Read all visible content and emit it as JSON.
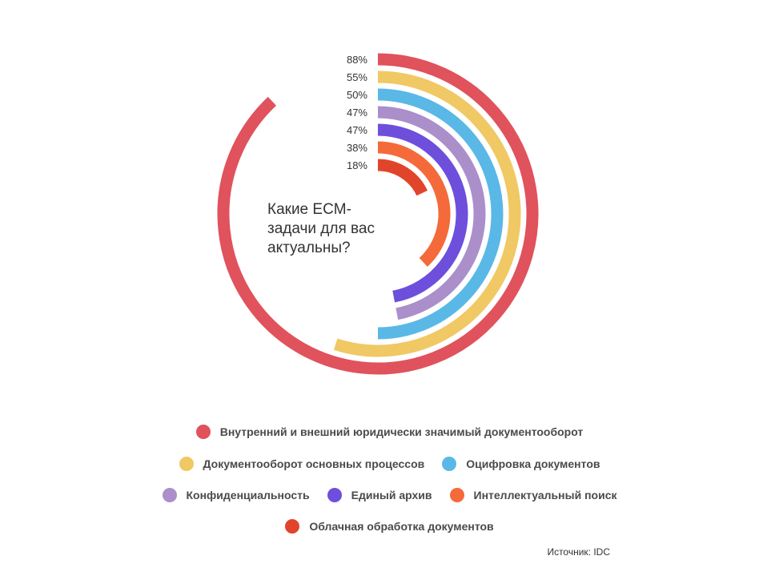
{
  "chart_data": {
    "type": "radial-bar",
    "title": "Какие ECM-задачи для вас актуальны?",
    "source": "Источник: IDC",
    "series": [
      {
        "name": "Внутренний и внешний юридически значимый документооборот",
        "value": 88,
        "label": "88%",
        "color": "#e0525c"
      },
      {
        "name": "Документооборот основных процессов",
        "value": 55,
        "label": "55%",
        "color": "#f0c864"
      },
      {
        "name": "Оцифровка документов",
        "value": 50,
        "label": "50%",
        "color": "#5ab8e6"
      },
      {
        "name": "Конфиденциальность",
        "value": 47,
        "label": "47%",
        "color": "#aa8fcb"
      },
      {
        "name": "Единый архив",
        "value": 47,
        "label": "47%",
        "color": "#6d4fdc"
      },
      {
        "name": "Интеллектуальный поиск",
        "value": 38,
        "label": "38%",
        "color": "#f46a3a"
      },
      {
        "name": "Облачная обработка документов",
        "value": 18,
        "label": "18%",
        "color": "#e0452c"
      }
    ],
    "legend_rows": [
      [
        0
      ],
      [
        1,
        2
      ],
      [
        3,
        4,
        5
      ],
      [
        6
      ]
    ],
    "legend_position": "bottom"
  }
}
